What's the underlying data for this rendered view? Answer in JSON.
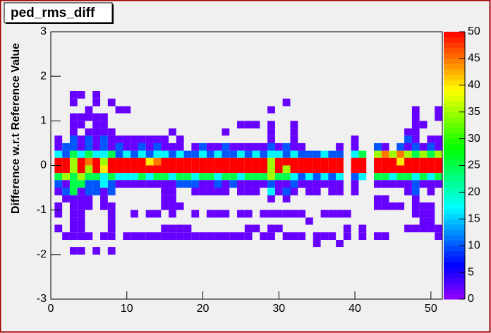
{
  "chart_data": {
    "type": "heatmap",
    "title": "ped_rms_diff",
    "y_label": "Difference w.r.t Reference Value",
    "xlim": [
      0,
      51.5
    ],
    "xticks": [
      0,
      10,
      20,
      30,
      40,
      50
    ],
    "ylim": [
      -3,
      3
    ],
    "yticks": [
      -3,
      -2,
      -1,
      0,
      1,
      2,
      3
    ],
    "zlim": [
      0,
      50
    ],
    "zticks": [
      0,
      5,
      10,
      15,
      20,
      25,
      30,
      35,
      40,
      45,
      50
    ],
    "x_edges": [
      0.5,
      1.5,
      2.5,
      3.5,
      4.5,
      5.5,
      6.5,
      7.5,
      8.5,
      9.5,
      10.5,
      11.5,
      12.5,
      13.5,
      14.5,
      15.5,
      16.5,
      17.5,
      18.5,
      19.5,
      20.5,
      21.5,
      22.5,
      23.5,
      24.5,
      25.5,
      26.5,
      27.5,
      28.5,
      29.5,
      30.5,
      31.5,
      32.5,
      33.5,
      34.5,
      35.5,
      36.5,
      37.5,
      38.5,
      39.5,
      40.5,
      41.5,
      42.5,
      43.5,
      44.5,
      45.5,
      46.5,
      47.5,
      48.5,
      49.5,
      50.5,
      51.5
    ],
    "y_edges": [
      1.67,
      1.5,
      1.33,
      1.17,
      1,
      0.83,
      0.67,
      0.5,
      0.33,
      0.17,
      0,
      -0.17,
      -0.33,
      -0.5,
      -0.67,
      -0.83,
      -1,
      -1.17,
      -1.33,
      -1.5,
      -1.67,
      -1.83,
      -2
    ],
    "z": [
      [
        null,
        null,
        2,
        2,
        null,
        2,
        null,
        null,
        null,
        null,
        null,
        null,
        null,
        null,
        null,
        null,
        null,
        null,
        null,
        null,
        null,
        null,
        null,
        null,
        null,
        null,
        null,
        null,
        null,
        null,
        null,
        null,
        null,
        null,
        null,
        null,
        null,
        null,
        null,
        null,
        null,
        null,
        null,
        null,
        null,
        null,
        null,
        null,
        null,
        null,
        null
      ],
      [
        null,
        null,
        2,
        null,
        null,
        2,
        null,
        2,
        null,
        null,
        null,
        null,
        null,
        null,
        null,
        null,
        null,
        null,
        null,
        null,
        null,
        null,
        null,
        null,
        null,
        null,
        null,
        null,
        null,
        null,
        2,
        null,
        null,
        null,
        null,
        null,
        null,
        null,
        null,
        null,
        null,
        null,
        null,
        null,
        null,
        null,
        null,
        null,
        null,
        null,
        null
      ],
      [
        null,
        null,
        null,
        null,
        2,
        null,
        null,
        null,
        2,
        2,
        null,
        null,
        null,
        null,
        null,
        null,
        null,
        null,
        null,
        null,
        null,
        null,
        null,
        null,
        null,
        null,
        null,
        null,
        2,
        null,
        null,
        null,
        null,
        null,
        null,
        null,
        null,
        null,
        null,
        null,
        null,
        null,
        null,
        null,
        null,
        null,
        null,
        2,
        null,
        null,
        2
      ],
      [
        null,
        null,
        2,
        2,
        2,
        2,
        2,
        null,
        null,
        null,
        null,
        null,
        null,
        null,
        null,
        null,
        null,
        null,
        null,
        null,
        null,
        null,
        null,
        null,
        null,
        null,
        null,
        null,
        null,
        null,
        null,
        null,
        null,
        null,
        null,
        null,
        null,
        null,
        null,
        null,
        null,
        null,
        null,
        null,
        null,
        null,
        null,
        2,
        null,
        null,
        2
      ],
      [
        null,
        null,
        2,
        2,
        null,
        2,
        2,
        null,
        null,
        null,
        null,
        null,
        null,
        null,
        null,
        null,
        null,
        null,
        null,
        null,
        null,
        null,
        null,
        null,
        2,
        2,
        2,
        null,
        2,
        null,
        null,
        2,
        null,
        null,
        null,
        null,
        null,
        null,
        null,
        null,
        null,
        null,
        null,
        null,
        null,
        null,
        null,
        2,
        2,
        null,
        null
      ],
      [
        null,
        null,
        2,
        null,
        2,
        2,
        2,
        2,
        null,
        null,
        null,
        null,
        null,
        null,
        null,
        2,
        null,
        null,
        null,
        null,
        null,
        null,
        2,
        null,
        null,
        null,
        null,
        null,
        2,
        null,
        null,
        2,
        null,
        null,
        null,
        null,
        null,
        null,
        null,
        null,
        null,
        null,
        null,
        null,
        null,
        null,
        2,
        2,
        null,
        null,
        null
      ],
      [
        2,
        null,
        10,
        2,
        10,
        2,
        10,
        2,
        2,
        2,
        2,
        2,
        2,
        2,
        2,
        null,
        2,
        null,
        null,
        null,
        null,
        null,
        null,
        null,
        null,
        null,
        null,
        null,
        2,
        null,
        null,
        2,
        null,
        null,
        null,
        null,
        null,
        null,
        null,
        2,
        null,
        null,
        null,
        null,
        null,
        null,
        10,
        2,
        null,
        2,
        2
      ],
      [
        2,
        10,
        10,
        2,
        10,
        2,
        10,
        2,
        10,
        2,
        2,
        10,
        2,
        10,
        2,
        2,
        2,
        null,
        2,
        10,
        2,
        2,
        10,
        2,
        2,
        2,
        2,
        2,
        10,
        2,
        10,
        2,
        2,
        null,
        null,
        null,
        null,
        2,
        null,
        2,
        null,
        null,
        10,
        2,
        null,
        10,
        2,
        10,
        2,
        10,
        2
      ],
      [
        17,
        10,
        25,
        17,
        25,
        17,
        17,
        25,
        10,
        17,
        10,
        17,
        10,
        17,
        17,
        10,
        17,
        10,
        10,
        17,
        10,
        17,
        10,
        10,
        17,
        10,
        17,
        10,
        17,
        17,
        10,
        17,
        10,
        10,
        10,
        17,
        10,
        10,
        null,
        17,
        25,
        null,
        35,
        45,
        35,
        45,
        35,
        25,
        35,
        25,
        35
      ],
      [
        50,
        50,
        35,
        50,
        45,
        50,
        35,
        50,
        50,
        50,
        50,
        50,
        40,
        45,
        50,
        50,
        50,
        50,
        50,
        50,
        50,
        50,
        50,
        50,
        50,
        50,
        50,
        50,
        35,
        50,
        50,
        50,
        50,
        50,
        50,
        50,
        50,
        50,
        null,
        50,
        50,
        null,
        50,
        50,
        50,
        40,
        50,
        50,
        50,
        50,
        50
      ],
      [
        50,
        50,
        35,
        50,
        35,
        50,
        40,
        50,
        50,
        50,
        50,
        50,
        50,
        50,
        50,
        50,
        50,
        50,
        50,
        50,
        50,
        50,
        50,
        50,
        50,
        50,
        50,
        50,
        35,
        50,
        35,
        50,
        50,
        50,
        50,
        50,
        50,
        50,
        null,
        50,
        50,
        null,
        50,
        50,
        50,
        50,
        50,
        50,
        50,
        50,
        50
      ],
      [
        25,
        35,
        25,
        35,
        25,
        25,
        17,
        25,
        17,
        17,
        17,
        25,
        17,
        25,
        25,
        17,
        25,
        25,
        17,
        25,
        25,
        17,
        25,
        25,
        17,
        25,
        25,
        25,
        35,
        25,
        25,
        17,
        10,
        17,
        10,
        17,
        10,
        17,
        null,
        10,
        17,
        null,
        25,
        25,
        17,
        25,
        25,
        17,
        25,
        17,
        25
      ],
      [
        10,
        2,
        25,
        25,
        10,
        10,
        17,
        10,
        2,
        2,
        2,
        2,
        2,
        2,
        2,
        2,
        10,
        10,
        10,
        2,
        2,
        10,
        2,
        10,
        2,
        2,
        2,
        2,
        10,
        2,
        2,
        10,
        2,
        2,
        2,
        2,
        2,
        2,
        null,
        2,
        null,
        null,
        2,
        2,
        2,
        2,
        2,
        10,
        2,
        2,
        2
      ],
      [
        2,
        10,
        25,
        2,
        10,
        10,
        2,
        10,
        null,
        null,
        null,
        null,
        null,
        null,
        2,
        2,
        null,
        null,
        2,
        2,
        2,
        2,
        2,
        null,
        2,
        2,
        2,
        null,
        17,
        2,
        10,
        2,
        null,
        2,
        2,
        null,
        2,
        2,
        null,
        2,
        null,
        null,
        null,
        null,
        null,
        null,
        2,
        10,
        null,
        2,
        null
      ],
      [
        null,
        2,
        2,
        2,
        2,
        null,
        2,
        null,
        null,
        null,
        null,
        null,
        null,
        null,
        2,
        2,
        null,
        null,
        null,
        null,
        null,
        null,
        null,
        null,
        null,
        null,
        null,
        null,
        2,
        null,
        2,
        null,
        null,
        null,
        null,
        null,
        null,
        null,
        null,
        null,
        null,
        null,
        2,
        2,
        null,
        null,
        null,
        2,
        null,
        null,
        null
      ],
      [
        2,
        null,
        2,
        2,
        2,
        null,
        2,
        2,
        null,
        null,
        null,
        null,
        null,
        null,
        2,
        2,
        2,
        null,
        null,
        null,
        null,
        null,
        null,
        null,
        null,
        null,
        null,
        null,
        null,
        null,
        null,
        null,
        null,
        null,
        null,
        null,
        null,
        null,
        null,
        null,
        null,
        null,
        2,
        2,
        2,
        2,
        null,
        2,
        2,
        2,
        null
      ],
      [
        2,
        null,
        2,
        2,
        null,
        null,
        null,
        2,
        null,
        null,
        2,
        null,
        2,
        2,
        null,
        2,
        null,
        null,
        2,
        null,
        2,
        2,
        2,
        null,
        2,
        2,
        null,
        2,
        2,
        2,
        2,
        2,
        2,
        null,
        null,
        2,
        2,
        2,
        2,
        null,
        null,
        null,
        null,
        null,
        null,
        null,
        null,
        2,
        2,
        2,
        null
      ],
      [
        null,
        null,
        2,
        2,
        null,
        null,
        null,
        2,
        null,
        null,
        null,
        null,
        null,
        null,
        null,
        null,
        null,
        null,
        null,
        null,
        null,
        null,
        null,
        null,
        null,
        null,
        null,
        null,
        null,
        null,
        null,
        null,
        null,
        2,
        null,
        null,
        null,
        null,
        null,
        null,
        null,
        null,
        null,
        null,
        null,
        null,
        null,
        null,
        2,
        2,
        null
      ],
      [
        2,
        null,
        2,
        2,
        null,
        null,
        null,
        2,
        null,
        null,
        null,
        null,
        null,
        null,
        2,
        2,
        2,
        2,
        null,
        null,
        null,
        null,
        null,
        null,
        null,
        2,
        2,
        null,
        2,
        2,
        null,
        null,
        null,
        null,
        null,
        null,
        null,
        null,
        2,
        null,
        2,
        null,
        null,
        null,
        null,
        null,
        2,
        2,
        2,
        2,
        2
      ],
      [
        null,
        2,
        2,
        2,
        2,
        null,
        2,
        2,
        null,
        2,
        2,
        2,
        2,
        2,
        2,
        2,
        2,
        2,
        2,
        2,
        2,
        2,
        2,
        2,
        2,
        2,
        null,
        2,
        2,
        null,
        2,
        2,
        2,
        null,
        2,
        2,
        2,
        null,
        2,
        null,
        2,
        null,
        2,
        2,
        null,
        null,
        null,
        null,
        null,
        null,
        2
      ],
      [
        null,
        null,
        null,
        null,
        null,
        null,
        null,
        null,
        null,
        null,
        null,
        null,
        null,
        null,
        null,
        null,
        null,
        null,
        null,
        null,
        null,
        null,
        null,
        null,
        null,
        null,
        null,
        null,
        null,
        null,
        null,
        null,
        null,
        null,
        2,
        null,
        null,
        2,
        null,
        null,
        null,
        null,
        null,
        null,
        null,
        null,
        null,
        null,
        null,
        null,
        null
      ],
      [
        null,
        null,
        2,
        2,
        null,
        2,
        null,
        2,
        null,
        null,
        null,
        null,
        null,
        null,
        null,
        null,
        null,
        null,
        null,
        null,
        null,
        null,
        null,
        null,
        null,
        null,
        null,
        null,
        null,
        null,
        null,
        null,
        null,
        null,
        null,
        null,
        null,
        null,
        null,
        null,
        null,
        null,
        null,
        null,
        null,
        null,
        null,
        null,
        null,
        null,
        null
      ]
    ]
  }
}
